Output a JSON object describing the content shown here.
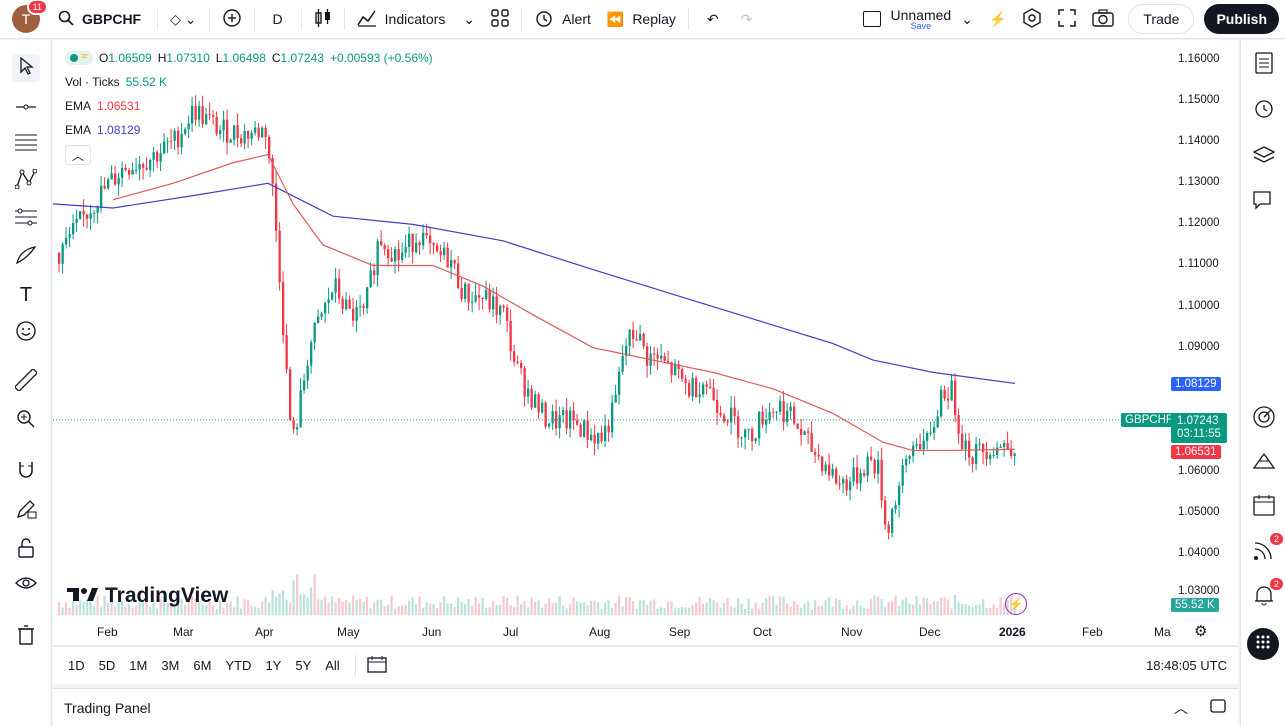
{
  "topbar": {
    "avatar_letter": "T",
    "avatar_badge": "11",
    "symbol": "GBPCHF",
    "interval": "D",
    "indicators_label": "Indicators",
    "alert_label": "Alert",
    "replay_label": "Replay",
    "layout_name": "Unnamed",
    "layout_save": "Save",
    "trade_label": "Trade",
    "publish_label": "Publish"
  },
  "legend": {
    "ohlc": {
      "o_label": "O",
      "o": "1.06509",
      "h_label": "H",
      "h": "1.07310",
      "l_label": "L",
      "l": "1.06498",
      "c_label": "C",
      "c": "1.07243",
      "change": "+0.00593 (+0.56%)"
    },
    "vol_label": "Vol · Ticks",
    "vol_value": "55.52 K",
    "ema1_label": "EMA",
    "ema1_value": "1.06531",
    "ema2_label": "EMA",
    "ema2_value": "1.08129"
  },
  "price_axis": [
    "1.16000",
    "1.15000",
    "1.14000",
    "1.13000",
    "1.12000",
    "1.11000",
    "1.10000",
    "1.09000",
    "1.06000",
    "1.05000",
    "1.04000",
    "1.03000"
  ],
  "tags": {
    "ema_slow": "1.08129",
    "symbol": "GBPCHF",
    "price": "1.07243",
    "countdown": "03:11:55",
    "ema_fast": "1.06531",
    "volume": "55.52 K"
  },
  "time_axis": [
    "Feb",
    "Mar",
    "Apr",
    "May",
    "Jun",
    "Jul",
    "Aug",
    "Sep",
    "Oct",
    "Nov",
    "Dec",
    "2026",
    "Feb",
    "Ma"
  ],
  "watermark": "TradingView",
  "bottombar": {
    "ranges": [
      "1D",
      "5D",
      "1M",
      "3M",
      "6M",
      "YTD",
      "1Y",
      "5Y",
      "All"
    ],
    "clock": "18:48:05 UTC"
  },
  "trading_panel_label": "Trading Panel",
  "right_badges": {
    "ideas": "2",
    "alerts": "2"
  },
  "colors": {
    "up": "#089981",
    "down": "#f23645",
    "ema_fast": "#e05a5a",
    "ema_slow": "#3f3fc8",
    "accent": "#2962ff"
  }
}
